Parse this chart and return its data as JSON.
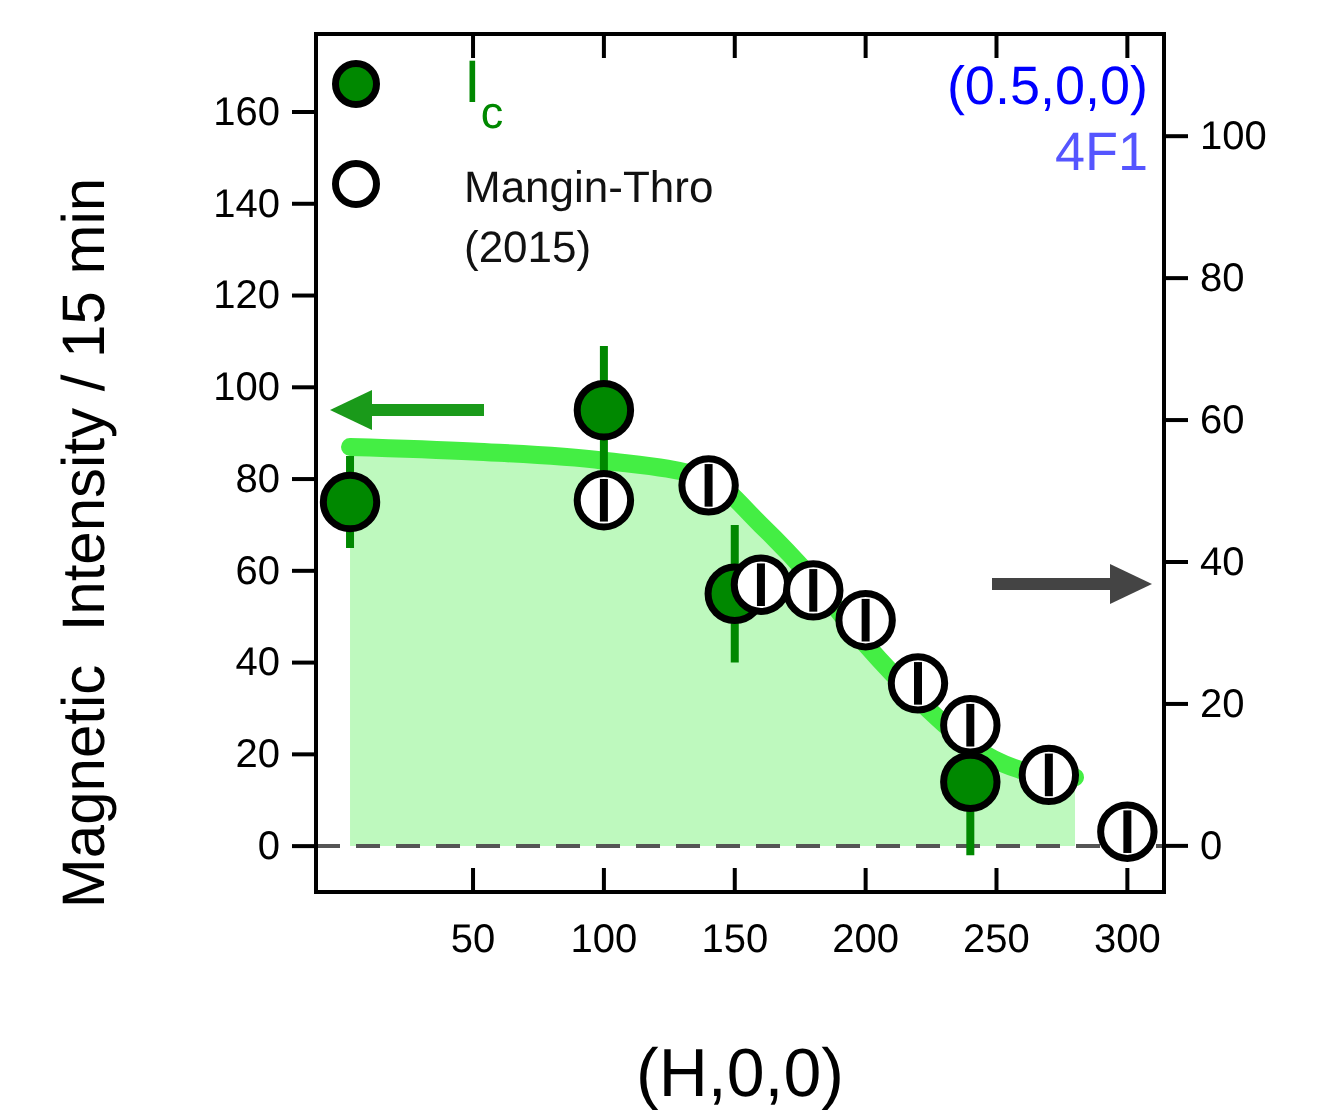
{
  "chart_data": {
    "type": "scatter",
    "xlabel": "(H,0,0)",
    "ylabel": "Magnetic  Intensity / 15 min",
    "xlim": [
      -10,
      314
    ],
    "xticks": [
      50,
      100,
      150,
      200,
      250,
      300
    ],
    "ylim": [
      -10,
      177
    ],
    "yticks": [
      0,
      20,
      40,
      60,
      80,
      100,
      120,
      140,
      160
    ],
    "y2lim": [
      -6.5,
      114.4
    ],
    "y2ticks": [
      0,
      20,
      40,
      60,
      80,
      100
    ],
    "legend": "top left",
    "grid": false,
    "ref_lines": [
      {
        "axis": "y",
        "value": 0,
        "color": "#555555",
        "line_style": "dashed"
      }
    ],
    "annotations": [
      "(0.5,0,0)",
      "4F1"
    ],
    "series": [
      {
        "type": "area",
        "color": "#44ee44",
        "x": [
          3,
          50,
          100,
          140,
          160,
          180,
          200,
          220,
          240,
          260,
          280
        ],
        "values": [
          87,
          86,
          84,
          80,
          70,
          58,
          44,
          32,
          22,
          16.5,
          15
        ]
      },
      {
        "name": "I$_{c}$",
        "color": "#008800",
        "marker": "circle",
        "x": [
          3,
          100,
          150,
          240
        ],
        "values": [
          75,
          95,
          55,
          14
        ],
        "errors": [
          10,
          14,
          15,
          16
        ]
      },
      {
        "name": "Mangin-Thro (2015)",
        "color": "#000000",
        "marker": "circle",
        "axis": "y2",
        "x": [
          100,
          140,
          160,
          180,
          200,
          220,
          240,
          270,
          300
        ],
        "values": [
          48.7,
          50.8,
          36.8,
          36,
          31.8,
          22.9,
          17,
          10,
          2
        ],
        "errors": [
          3,
          3,
          3,
          3,
          3,
          3,
          3,
          3,
          3
        ]
      }
    ]
  }
}
